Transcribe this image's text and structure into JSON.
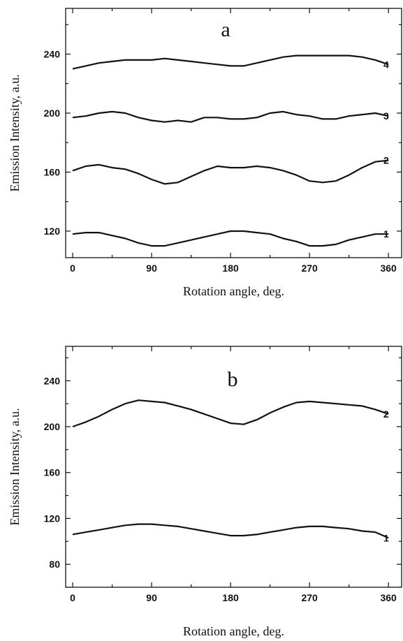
{
  "chart_data": [
    {
      "type": "line",
      "panel_label": "a",
      "xlabel": "Rotation angle, deg.",
      "ylabel": "Emission Intensity, a.u.",
      "xlim": [
        -8,
        375
      ],
      "ylim": [
        102,
        271
      ],
      "xticks": [
        0,
        90,
        180,
        270,
        360
      ],
      "yticks": [
        120,
        160,
        200,
        240
      ],
      "series": [
        {
          "name": "1",
          "x": [
            0,
            15,
            30,
            45,
            60,
            75,
            90,
            105,
            120,
            135,
            150,
            165,
            180,
            195,
            210,
            225,
            240,
            255,
            270,
            285,
            300,
            315,
            330,
            345,
            360
          ],
          "y": [
            118,
            119,
            119,
            117,
            115,
            112,
            110,
            110,
            112,
            114,
            116,
            118,
            120,
            120,
            119,
            118,
            115,
            113,
            110,
            110,
            111,
            114,
            116,
            118,
            118
          ]
        },
        {
          "name": "2",
          "x": [
            0,
            15,
            30,
            45,
            60,
            75,
            90,
            105,
            120,
            135,
            150,
            165,
            180,
            195,
            210,
            225,
            240,
            255,
            270,
            285,
            300,
            315,
            330,
            345,
            360
          ],
          "y": [
            161,
            164,
            165,
            163,
            162,
            159,
            155,
            152,
            153,
            157,
            161,
            164,
            163,
            163,
            164,
            163,
            161,
            158,
            154,
            153,
            154,
            158,
            163,
            167,
            168
          ]
        },
        {
          "name": "3",
          "x": [
            0,
            15,
            30,
            45,
            60,
            75,
            90,
            105,
            120,
            135,
            150,
            165,
            180,
            195,
            210,
            225,
            240,
            255,
            270,
            285,
            300,
            315,
            330,
            345,
            360
          ],
          "y": [
            197,
            198,
            200,
            201,
            200,
            197,
            195,
            194,
            195,
            194,
            197,
            197,
            196,
            196,
            197,
            200,
            201,
            199,
            198,
            196,
            196,
            198,
            199,
            200,
            198
          ]
        },
        {
          "name": "4",
          "x": [
            0,
            15,
            30,
            45,
            60,
            75,
            90,
            105,
            120,
            135,
            150,
            165,
            180,
            195,
            210,
            225,
            240,
            255,
            270,
            285,
            300,
            315,
            330,
            345,
            360
          ],
          "y": [
            230,
            232,
            234,
            235,
            236,
            236,
            236,
            237,
            236,
            235,
            234,
            233,
            232,
            232,
            234,
            236,
            238,
            239,
            239,
            239,
            239,
            239,
            238,
            236,
            233
          ]
        }
      ]
    },
    {
      "type": "line",
      "panel_label": "b",
      "xlabel": "Rotation angle, deg.",
      "ylabel": "Emission Intensity, a.u.",
      "xlim": [
        -8,
        375
      ],
      "ylim": [
        60,
        270
      ],
      "xticks": [
        0,
        90,
        180,
        270,
        360
      ],
      "yticks": [
        80,
        120,
        160,
        200,
        240
      ],
      "series": [
        {
          "name": "1",
          "x": [
            0,
            15,
            30,
            45,
            60,
            75,
            90,
            105,
            120,
            135,
            150,
            165,
            180,
            195,
            210,
            225,
            240,
            255,
            270,
            285,
            300,
            315,
            330,
            345,
            360
          ],
          "y": [
            106,
            108,
            110,
            112,
            114,
            115,
            115,
            114,
            113,
            111,
            109,
            107,
            105,
            105,
            106,
            108,
            110,
            112,
            113,
            113,
            112,
            111,
            109,
            108,
            103
          ]
        },
        {
          "name": "2",
          "x": [
            0,
            15,
            30,
            45,
            60,
            75,
            90,
            105,
            120,
            135,
            150,
            165,
            180,
            195,
            210,
            225,
            240,
            255,
            270,
            285,
            300,
            315,
            330,
            345,
            360
          ],
          "y": [
            200,
            204,
            209,
            215,
            220,
            223,
            222,
            221,
            218,
            215,
            211,
            207,
            203,
            202,
            206,
            212,
            217,
            221,
            222,
            221,
            220,
            219,
            218,
            215,
            211
          ]
        }
      ]
    }
  ]
}
